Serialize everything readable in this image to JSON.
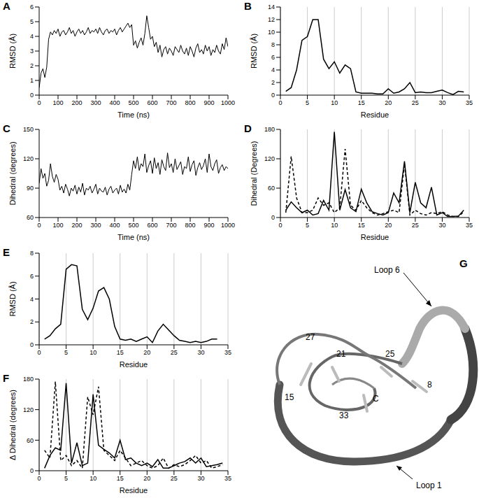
{
  "chart_data": [
    {
      "panel": "A",
      "type": "line",
      "x_label": "Time (ns)",
      "y_label": "RMSD (Å)",
      "xlim": [
        0,
        1000
      ],
      "xticks": [
        0,
        100,
        200,
        300,
        400,
        500,
        600,
        700,
        800,
        900,
        1000
      ],
      "ylim": [
        0,
        6
      ],
      "yticks": [
        0,
        1,
        2,
        3,
        4,
        5,
        6
      ],
      "grid": false,
      "x": [
        0,
        10,
        20,
        30,
        40,
        50,
        60,
        70,
        80,
        90,
        100,
        110,
        120,
        130,
        140,
        150,
        160,
        170,
        180,
        190,
        200,
        210,
        220,
        230,
        240,
        250,
        260,
        270,
        280,
        290,
        300,
        310,
        320,
        330,
        340,
        350,
        360,
        370,
        380,
        390,
        400,
        410,
        420,
        430,
        440,
        450,
        460,
        470,
        480,
        490,
        500,
        510,
        520,
        530,
        540,
        550,
        560,
        570,
        580,
        590,
        600,
        610,
        620,
        630,
        640,
        650,
        660,
        670,
        680,
        690,
        700,
        710,
        720,
        730,
        740,
        750,
        760,
        770,
        780,
        790,
        800,
        810,
        820,
        830,
        840,
        850,
        860,
        870,
        880,
        890,
        900,
        910,
        920,
        930,
        940,
        950,
        960,
        970,
        980,
        990,
        1000
      ],
      "series": [
        {
          "color": "#000000",
          "line_style": "solid",
          "values": [
            0.5,
            1.5,
            1.8,
            1.2,
            1.9,
            3.8,
            4.3,
            4.1,
            4.4,
            4.2,
            4.5,
            4.0,
            4.3,
            4.4,
            4.1,
            4.3,
            4.6,
            4.2,
            4.4,
            4.0,
            4.3,
            4.5,
            4.2,
            4.4,
            4.1,
            4.3,
            4.6,
            4.2,
            4.4,
            4.3,
            4.5,
            4.2,
            4.6,
            4.3,
            4.1,
            4.4,
            4.5,
            4.2,
            4.4,
            4.3,
            4.5,
            4.1,
            4.4,
            4.6,
            4.3,
            4.5,
            4.7,
            4.9,
            4.6,
            4.8,
            3.4,
            3.7,
            3.2,
            3.6,
            3.9,
            3.4,
            4.2,
            5.4,
            4.6,
            3.8,
            4.0,
            3.3,
            3.6,
            2.9,
            3.4,
            2.6,
            3.1,
            3.3,
            2.8,
            3.2,
            3.0,
            2.7,
            3.3,
            3.1,
            2.9,
            3.4,
            3.0,
            2.8,
            3.2,
            2.7,
            3.3,
            3.0,
            2.6,
            3.2,
            3.5,
            2.9,
            3.1,
            2.8,
            3.4,
            3.0,
            3.3,
            2.7,
            3.1,
            2.9,
            3.4,
            3.0,
            2.8,
            3.5,
            3.1,
            3.9,
            3.3
          ]
        }
      ]
    },
    {
      "panel": "B",
      "type": "line",
      "x_label": "Residue",
      "y_label": "RMSD (Å)",
      "xlim": [
        0,
        35
      ],
      "xticks": [
        0,
        5,
        10,
        15,
        20,
        25,
        30,
        35
      ],
      "ylim": [
        0,
        14
      ],
      "yticks": [
        0,
        2,
        4,
        6,
        8,
        10,
        12,
        14
      ],
      "grid": true,
      "x": [
        1,
        2,
        3,
        4,
        5,
        6,
        7,
        8,
        9,
        10,
        11,
        12,
        13,
        14,
        15,
        16,
        17,
        18,
        19,
        20,
        21,
        22,
        23,
        24,
        25,
        26,
        27,
        28,
        29,
        30,
        31,
        32,
        33,
        34
      ],
      "series": [
        {
          "color": "#000000",
          "line_style": "solid",
          "values": [
            0.6,
            1.2,
            4,
            8.7,
            9.3,
            12,
            12,
            5.7,
            4.2,
            5.3,
            3.5,
            4.8,
            4.2,
            0.5,
            0.3,
            0.3,
            0.3,
            0.2,
            0.2,
            1.0,
            0.3,
            0.5,
            1.0,
            2.0,
            0.4,
            0.5,
            0.4,
            0.4,
            0.6,
            0.8,
            0.4,
            0.1,
            0.6,
            0.5
          ]
        }
      ]
    },
    {
      "panel": "C",
      "type": "line",
      "x_label": "Time (ns)",
      "y_label": "Dihedral (degrees)",
      "xlim": [
        0,
        1000
      ],
      "xticks": [
        0,
        100,
        200,
        300,
        400,
        500,
        600,
        700,
        800,
        900,
        1000
      ],
      "ylim": [
        60,
        150
      ],
      "yticks": [
        60,
        90,
        120,
        150
      ],
      "grid": false,
      "x": [
        0,
        10,
        20,
        30,
        40,
        50,
        60,
        70,
        80,
        90,
        100,
        110,
        120,
        130,
        140,
        150,
        160,
        170,
        180,
        190,
        200,
        210,
        220,
        230,
        240,
        250,
        260,
        270,
        280,
        290,
        300,
        310,
        320,
        330,
        340,
        350,
        360,
        370,
        380,
        390,
        400,
        410,
        420,
        430,
        440,
        450,
        460,
        470,
        480,
        490,
        500,
        510,
        520,
        530,
        540,
        550,
        560,
        570,
        580,
        590,
        600,
        610,
        620,
        630,
        640,
        650,
        660,
        670,
        680,
        690,
        700,
        710,
        720,
        730,
        740,
        750,
        760,
        770,
        780,
        790,
        800,
        810,
        820,
        830,
        840,
        850,
        860,
        870,
        880,
        890,
        900,
        910,
        920,
        930,
        940,
        950,
        960,
        970,
        980,
        990,
        1000
      ],
      "series": [
        {
          "color": "#000000",
          "line_style": "solid",
          "values": [
            95,
            110,
            100,
            105,
            92,
            98,
            115,
            102,
            96,
            104,
            99,
            88,
            92,
            85,
            94,
            89,
            82,
            90,
            87,
            93,
            84,
            91,
            86,
            95,
            83,
            90,
            88,
            92,
            85,
            89,
            94,
            84,
            90,
            87,
            86,
            91,
            83,
            89,
            92,
            85,
            88,
            90,
            84,
            93,
            86,
            89,
            85,
            94,
            88,
            104,
            118,
            110,
            122,
            108,
            115,
            112,
            125,
            106,
            113,
            118,
            105,
            121,
            110,
            116,
            104,
            119,
            112,
            108,
            126,
            111,
            115,
            106,
            120,
            109,
            113,
            117,
            104,
            112,
            110,
            122,
            107,
            114,
            118,
            103,
            111,
            116,
            109,
            113,
            120,
            106,
            125,
            112,
            108,
            115,
            119,
            105,
            111,
            114,
            108,
            112,
            110
          ]
        }
      ]
    },
    {
      "panel": "D",
      "type": "line",
      "x_label": "Residue",
      "y_label": "Dihedral (Degrees)",
      "xlim": [
        0,
        35
      ],
      "xticks": [
        0,
        5,
        10,
        15,
        20,
        25,
        30,
        35
      ],
      "ylim": [
        0,
        180
      ],
      "yticks": [
        0,
        60,
        120,
        180
      ],
      "grid": true,
      "x": [
        1,
        2,
        3,
        4,
        5,
        6,
        7,
        8,
        9,
        10,
        11,
        12,
        13,
        14,
        15,
        16,
        17,
        18,
        19,
        20,
        21,
        22,
        23,
        24,
        25,
        26,
        27,
        28,
        29,
        30,
        31,
        32,
        33,
        34
      ],
      "series": [
        {
          "color": "#000000",
          "line_style": "solid",
          "values": [
            15,
            32,
            20,
            10,
            15,
            5,
            8,
            35,
            15,
            175,
            15,
            57,
            20,
            12,
            58,
            30,
            12,
            8,
            5,
            10,
            50,
            30,
            115,
            10,
            72,
            30,
            20,
            62,
            5,
            10,
            2,
            2,
            3,
            15
          ]
        },
        {
          "color": "#000000",
          "line_style": "dashed",
          "values": [
            10,
            125,
            40,
            10,
            10,
            15,
            40,
            25,
            30,
            10,
            20,
            140,
            25,
            15,
            35,
            20,
            10,
            5,
            8,
            12,
            15,
            10,
            110,
            5,
            15,
            8,
            5,
            10,
            8,
            12,
            5,
            2,
            2,
            12
          ]
        }
      ]
    },
    {
      "panel": "E",
      "type": "line",
      "x_label": "Residue",
      "y_label": "RMSD (Å)",
      "xlim": [
        0,
        35
      ],
      "xticks": [
        0,
        5,
        10,
        15,
        20,
        25,
        30,
        35
      ],
      "ylim": [
        0,
        8
      ],
      "yticks": [
        0,
        2,
        4,
        6,
        8
      ],
      "grid": true,
      "x": [
        1,
        2,
        3,
        4,
        5,
        6,
        7,
        8,
        9,
        10,
        11,
        12,
        13,
        14,
        15,
        16,
        17,
        18,
        19,
        20,
        21,
        22,
        23,
        24,
        25,
        26,
        27,
        28,
        29,
        30,
        31,
        32,
        33
      ],
      "series": [
        {
          "color": "#000000",
          "line_style": "solid",
          "values": [
            0.5,
            0.8,
            1.4,
            1.8,
            6.6,
            7.0,
            6.9,
            3.1,
            2.2,
            3.2,
            4.7,
            5.0,
            4.0,
            1.6,
            0.5,
            0.4,
            0.5,
            0.3,
            0.5,
            0.7,
            0.2,
            1.2,
            1.8,
            1.3,
            0.8,
            0.4,
            0.3,
            0.2,
            0.3,
            0.2,
            0.3,
            0.5,
            0.5
          ]
        }
      ]
    },
    {
      "panel": "F",
      "type": "line",
      "x_label": "Residue",
      "y_label": "Δ Dihedral (degrees)",
      "xlim": [
        0,
        35
      ],
      "xticks": [
        0,
        5,
        10,
        15,
        20,
        25,
        30,
        35
      ],
      "ylim": [
        0,
        180
      ],
      "yticks": [
        0,
        60,
        120,
        180
      ],
      "grid": true,
      "x": [
        1,
        2,
        3,
        4,
        5,
        6,
        7,
        8,
        9,
        10,
        11,
        12,
        13,
        14,
        15,
        16,
        17,
        18,
        19,
        20,
        21,
        22,
        23,
        24,
        25,
        26,
        27,
        28,
        29,
        30,
        31,
        32,
        33,
        34
      ],
      "series": [
        {
          "color": "#000000",
          "line_style": "solid",
          "values": [
            5,
            30,
            45,
            40,
            172,
            15,
            55,
            10,
            15,
            150,
            50,
            42,
            35,
            25,
            60,
            22,
            25,
            15,
            10,
            15,
            8,
            22,
            5,
            5,
            10,
            15,
            18,
            25,
            15,
            25,
            8,
            10,
            12,
            15
          ]
        },
        {
          "color": "#000000",
          "line_style": "dashed",
          "values": [
            40,
            25,
            175,
            20,
            30,
            10,
            20,
            5,
            145,
            110,
            165,
            40,
            30,
            20,
            40,
            25,
            10,
            15,
            20,
            10,
            5,
            10,
            25,
            5,
            12,
            8,
            12,
            20,
            30,
            15,
            20,
            5,
            8,
            12
          ]
        }
      ]
    }
  ],
  "diagram": {
    "panel": "G",
    "labels": [
      "Loop 6",
      "Loop 1",
      "27",
      "21",
      "25",
      "15",
      "8",
      "C",
      "33"
    ]
  }
}
